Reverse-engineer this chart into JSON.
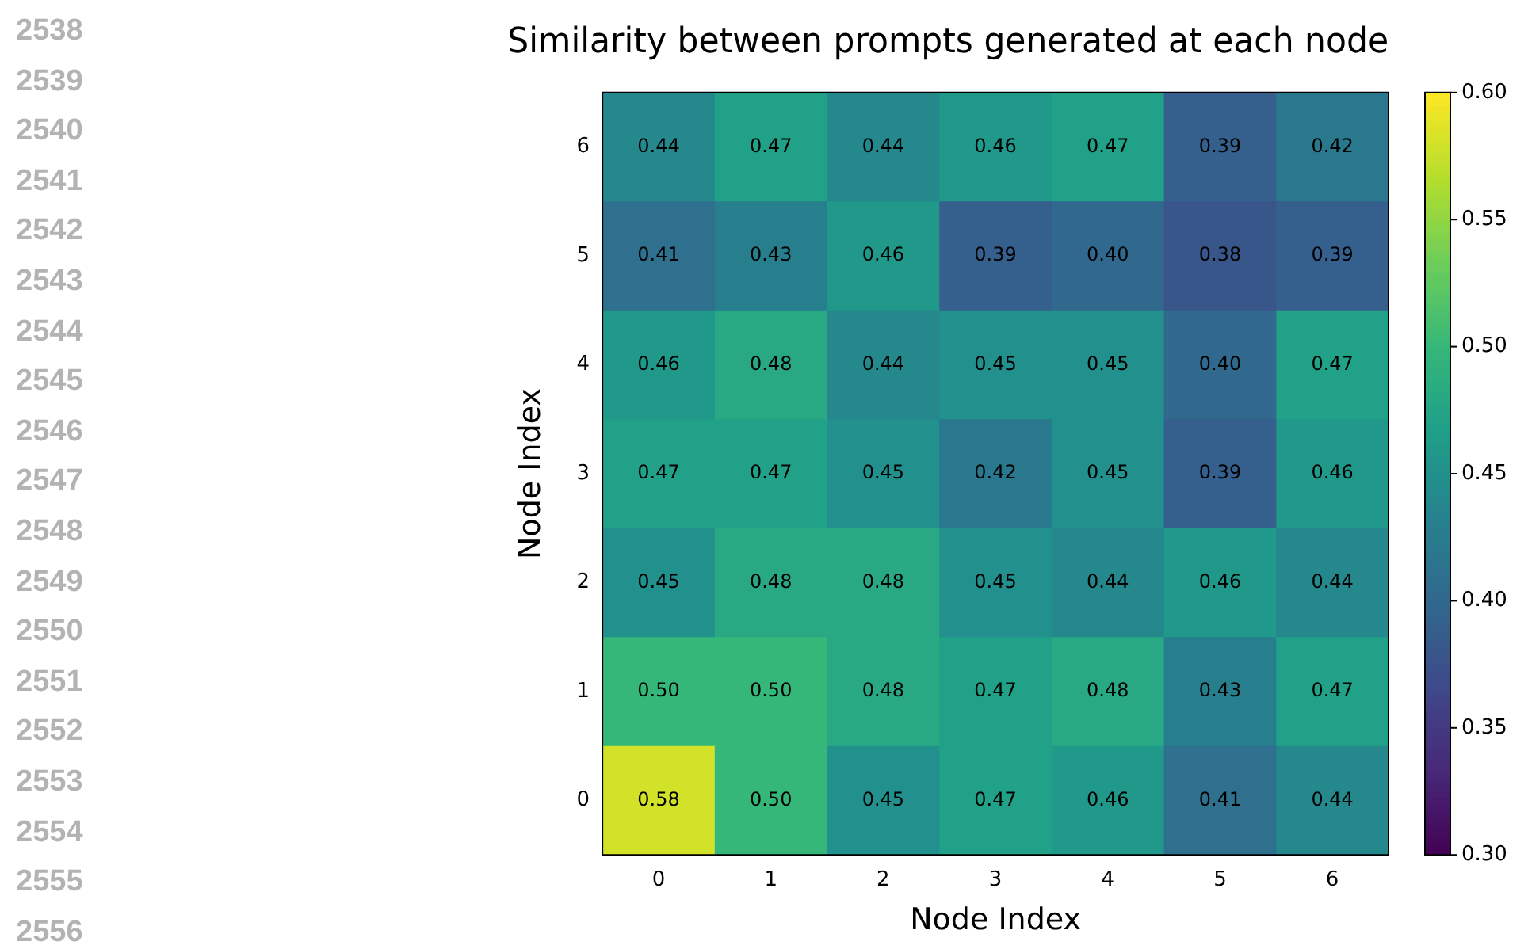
{
  "chart_data": {
    "type": "heatmap",
    "title": "Similarity between prompts generated at each node",
    "xlabel": "Node Index",
    "ylabel": "Node Index",
    "categories": [
      "0",
      "1",
      "2",
      "3",
      "4",
      "5",
      "6"
    ],
    "y_categories": [
      "6",
      "5",
      "4",
      "3",
      "2",
      "1",
      "0"
    ],
    "cells": [
      [
        0.44,
        0.47,
        0.44,
        0.46,
        0.47,
        0.39,
        0.42
      ],
      [
        0.41,
        0.43,
        0.46,
        0.39,
        0.4,
        0.38,
        0.39
      ],
      [
        0.46,
        0.48,
        0.44,
        0.45,
        0.45,
        0.4,
        0.47
      ],
      [
        0.47,
        0.47,
        0.45,
        0.42,
        0.45,
        0.39,
        0.46
      ],
      [
        0.45,
        0.48,
        0.48,
        0.45,
        0.44,
        0.46,
        0.44
      ],
      [
        0.5,
        0.5,
        0.48,
        0.47,
        0.48,
        0.43,
        0.47
      ],
      [
        0.58,
        0.5,
        0.45,
        0.47,
        0.46,
        0.41,
        0.44
      ]
    ],
    "cell_labels": [
      [
        "0.44",
        "0.47",
        "0.44",
        "0.46",
        "0.47",
        "0.39",
        "0.42"
      ],
      [
        "0.41",
        "0.43",
        "0.46",
        "0.39",
        "0.40",
        "0.38",
        "0.39"
      ],
      [
        "0.46",
        "0.48",
        "0.44",
        "0.45",
        "0.45",
        "0.40",
        "0.47"
      ],
      [
        "0.47",
        "0.47",
        "0.45",
        "0.42",
        "0.45",
        "0.39",
        "0.46"
      ],
      [
        "0.45",
        "0.48",
        "0.48",
        "0.45",
        "0.44",
        "0.46",
        "0.44"
      ],
      [
        "0.50",
        "0.50",
        "0.48",
        "0.47",
        "0.48",
        "0.43",
        "0.47"
      ],
      [
        "0.58",
        "0.50",
        "0.45",
        "0.47",
        "0.46",
        "0.41",
        "0.44"
      ]
    ],
    "clim": [
      0.3,
      0.6
    ],
    "cticks": [
      {
        "value": 0.3,
        "label": "0.30"
      },
      {
        "value": 0.35,
        "label": "0.35"
      },
      {
        "value": 0.4,
        "label": "0.40"
      },
      {
        "value": 0.45,
        "label": "0.45"
      },
      {
        "value": 0.5,
        "label": "0.50"
      },
      {
        "value": 0.55,
        "label": "0.55"
      },
      {
        "value": 0.6,
        "label": "0.60"
      }
    ],
    "annotations": [
      "2538",
      "2539",
      "2540",
      "2541",
      "2542",
      "2543",
      "2544",
      "2545",
      "2546",
      "2547",
      "2548",
      "2549",
      "2550",
      "2551",
      "2552",
      "2553",
      "2554",
      "2555",
      "2556"
    ]
  }
}
